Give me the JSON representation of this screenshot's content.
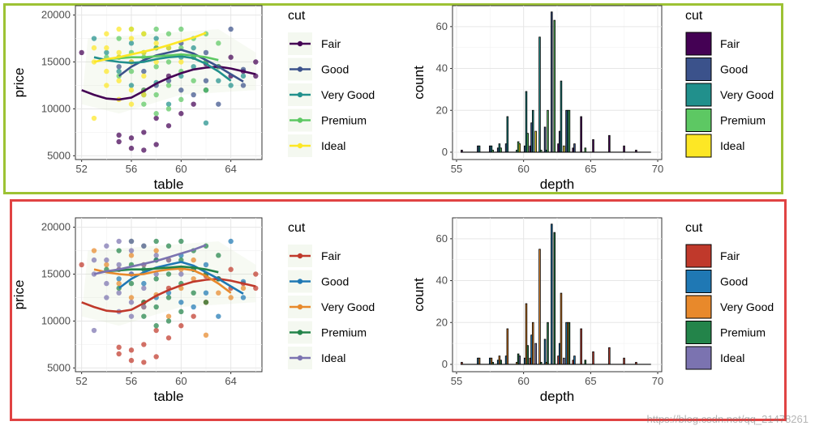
{
  "watermark": "https://blog.csdn.net/qq_21478261",
  "panels": [
    {
      "frame_color": "#9dc234",
      "palette_name": "viridis",
      "scatter": {
        "type": "scatter",
        "xlabel": "table",
        "ylabel": "price",
        "xticks": [
          52,
          56,
          60,
          64
        ],
        "yticks": [
          5000,
          10000,
          15000,
          20000
        ],
        "xlim": [
          51.5,
          66.5
        ],
        "ylim": [
          4600,
          21000
        ],
        "legend_title": "cut",
        "legend_placement": "right"
      },
      "histogram": {
        "type": "bar",
        "xlabel": "depth",
        "ylabel": "count",
        "xticks": [
          55,
          60,
          65,
          70
        ],
        "yticks": [
          0,
          20,
          40,
          60
        ],
        "xlim": [
          54.7,
          70.3
        ],
        "ylim": [
          -3.5,
          70
        ],
        "legend_title": "cut",
        "legend_placement": "right"
      },
      "colors": {
        "Fair": "#440154",
        "Good": "#3b528b",
        "Very Good": "#21908c",
        "Premium": "#5dc863",
        "Ideal": "#fde725"
      }
    },
    {
      "frame_color": "#e04343",
      "palette_name": "custom",
      "scatter": {
        "type": "scatter",
        "xlabel": "table",
        "ylabel": "price",
        "xticks": [
          52,
          56,
          60,
          64
        ],
        "yticks": [
          5000,
          10000,
          15000,
          20000
        ],
        "xlim": [
          51.5,
          66.5
        ],
        "ylim": [
          4600,
          21000
        ],
        "legend_title": "cut",
        "legend_placement": "right"
      },
      "histogram": {
        "type": "bar",
        "xlabel": "depth",
        "ylabel": "count",
        "xticks": [
          55,
          60,
          65,
          70
        ],
        "yticks": [
          0,
          20,
          40,
          60
        ],
        "xlim": [
          54.7,
          70.3
        ],
        "ylim": [
          -3.5,
          70
        ],
        "legend_title": "cut",
        "legend_placement": "right"
      },
      "colors": {
        "Fair": "#c0392b",
        "Good": "#1f78b4",
        "Very Good": "#e8892b",
        "Premium": "#23844a",
        "Ideal": "#7b73b0"
      }
    }
  ],
  "chart_data": [
    {
      "type": "scatter",
      "title": "",
      "xlabel": "table",
      "ylabel": "price",
      "xlim": [
        51.5,
        66.5
      ],
      "ylim": [
        4600,
        21000
      ],
      "grid": true,
      "legend": "right",
      "series": [
        {
          "name": "Fair",
          "points": [
            [
              55,
              6500
            ],
            [
              55,
              7200
            ],
            [
              56,
              5800
            ],
            [
              56,
              6900
            ],
            [
              57,
              5600
            ],
            [
              57,
              7500
            ],
            [
              58,
              6200
            ],
            [
              58,
              9000
            ],
            [
              59,
              8200
            ],
            [
              60,
              9500
            ],
            [
              61,
              10500
            ],
            [
              62,
              12000
            ],
            [
              62,
              14800
            ],
            [
              63,
              14500
            ],
            [
              64,
              15500
            ],
            [
              64,
              13500
            ],
            [
              65,
              14000
            ],
            [
              66,
              15000
            ],
            [
              66,
              13500
            ],
            [
              52,
              16000
            ],
            [
              57,
              12000
            ],
            [
              59,
              13500
            ]
          ],
          "trend": [
            [
              52,
              12000
            ],
            [
              53,
              11500
            ],
            [
              54,
              11100
            ],
            [
              55,
              11000
            ],
            [
              56,
              11200
            ],
            [
              57,
              11900
            ],
            [
              58,
              12700
            ],
            [
              59,
              13300
            ],
            [
              60,
              13800
            ],
            [
              61,
              14200
            ],
            [
              62,
              14400
            ],
            [
              63,
              14500
            ],
            [
              64,
              14300
            ],
            [
              65,
              14000
            ],
            [
              66,
              13700
            ]
          ]
        },
        {
          "name": "Good",
          "points": [
            [
              55,
              14500
            ],
            [
              56,
              15000
            ],
            [
              57,
              14000
            ],
            [
              58,
              16500
            ],
            [
              58,
              12500
            ],
            [
              59,
              13000
            ],
            [
              60,
              17000
            ],
            [
              60,
              12000
            ],
            [
              61,
              15500
            ],
            [
              61,
              11500
            ],
            [
              62,
              16000
            ],
            [
              62,
              13000
            ],
            [
              63,
              14500
            ],
            [
              63,
              10500
            ],
            [
              64,
              18500
            ],
            [
              65,
              12500
            ],
            [
              65,
              14200
            ]
          ],
          "trend": [
            [
              55,
              13500
            ],
            [
              56,
              14500
            ],
            [
              57,
              15200
            ],
            [
              58,
              15700
            ],
            [
              59,
              16000
            ],
            [
              60,
              16300
            ],
            [
              61,
              15900
            ],
            [
              62,
              15200
            ],
            [
              63,
              14500
            ],
            [
              64,
              13700
            ],
            [
              65,
              12900
            ]
          ]
        },
        {
          "name": "Very Good",
          "points": [
            [
              53,
              17500
            ],
            [
              54,
              16000
            ],
            [
              55,
              15500
            ],
            [
              55,
              14000
            ],
            [
              56,
              17000
            ],
            [
              56,
              12500
            ],
            [
              57,
              16000
            ],
            [
              57,
              11500
            ],
            [
              58,
              17500
            ],
            [
              58,
              12800
            ],
            [
              59,
              16500
            ],
            [
              59,
              10500
            ],
            [
              60,
              15500
            ],
            [
              60,
              13500
            ],
            [
              61,
              14500
            ],
            [
              61,
              16500
            ],
            [
              62,
              12000
            ],
            [
              62,
              15000
            ],
            [
              63,
              13000
            ],
            [
              64,
              12500
            ],
            [
              65,
              13500
            ],
            [
              62,
              8500
            ]
          ],
          "trend": [
            [
              53,
              15500
            ],
            [
              54,
              15200
            ],
            [
              55,
              15000
            ],
            [
              56,
              14900
            ],
            [
              57,
              15000
            ],
            [
              58,
              15300
            ],
            [
              59,
              15500
            ],
            [
              60,
              15600
            ],
            [
              61,
              15400
            ],
            [
              62,
              14800
            ],
            [
              63,
              14000
            ],
            [
              64,
              13000
            ]
          ]
        },
        {
          "name": "Premium",
          "points": [
            [
              56,
              18500
            ],
            [
              56,
              16000
            ],
            [
              56,
              14000
            ],
            [
              57,
              18000
            ],
            [
              57,
              15500
            ],
            [
              57,
              12000
            ],
            [
              57,
              10500
            ],
            [
              58,
              18500
            ],
            [
              58,
              16500
            ],
            [
              58,
              14500
            ],
            [
              58,
              11500
            ],
            [
              58,
              9500
            ],
            [
              59,
              18000
            ],
            [
              59,
              15000
            ],
            [
              59,
              12500
            ],
            [
              59,
              10000
            ],
            [
              60,
              18500
            ],
            [
              60,
              16500
            ],
            [
              60,
              14000
            ],
            [
              60,
              11000
            ],
            [
              61,
              17500
            ],
            [
              61,
              15500
            ],
            [
              61,
              13000
            ],
            [
              62,
              18000
            ],
            [
              62,
              15000
            ],
            [
              62,
              12000
            ],
            [
              63,
              17000
            ],
            [
              63,
              14500
            ],
            [
              55,
              17500
            ],
            [
              55,
              13500
            ],
            [
              54,
              15500
            ]
          ],
          "trend": [
            [
              54,
              15300
            ],
            [
              55,
              15400
            ],
            [
              56,
              15500
            ],
            [
              57,
              15500
            ],
            [
              58,
              15600
            ],
            [
              59,
              15700
            ],
            [
              60,
              15800
            ],
            [
              61,
              15700
            ],
            [
              62,
              15500
            ],
            [
              63,
              15200
            ]
          ]
        },
        {
          "name": "Ideal",
          "points": [
            [
              53,
              15000
            ],
            [
              53,
              9000
            ],
            [
              54,
              18000
            ],
            [
              54,
              16500
            ],
            [
              54,
              14000
            ],
            [
              55,
              18500
            ],
            [
              55,
              16000
            ],
            [
              55,
              15500
            ],
            [
              55,
              13000
            ],
            [
              56,
              18500
            ],
            [
              56,
              17500
            ],
            [
              56,
              15000
            ],
            [
              56,
              12000
            ],
            [
              56,
              10500
            ],
            [
              57,
              18000
            ],
            [
              57,
              16000
            ],
            [
              57,
              13500
            ],
            [
              57,
              11500
            ],
            [
              58,
              17000
            ],
            [
              58,
              15000
            ],
            [
              59,
              16500
            ],
            [
              60,
              15000
            ],
            [
              53,
              16500
            ],
            [
              54,
              12500
            ],
            [
              55,
              11000
            ]
          ],
          "trend": [
            [
              53,
              15000
            ],
            [
              54,
              15300
            ],
            [
              55,
              15500
            ],
            [
              56,
              15800
            ],
            [
              57,
              16100
            ],
            [
              58,
              16400
            ],
            [
              59,
              16800
            ],
            [
              60,
              17200
            ],
            [
              61,
              17600
            ],
            [
              62,
              18100
            ]
          ]
        }
      ]
    },
    {
      "type": "bar",
      "title": "",
      "xlabel": "depth",
      "ylabel": "count",
      "xlim": [
        54.7,
        70.3
      ],
      "ylim": [
        -3.5,
        70
      ],
      "grid": true,
      "legend": "right",
      "bar_groups": [
        {
          "x": 55.6,
          "counts": {
            "Fair": 1
          }
        },
        {
          "x": 56.7,
          "counts": {
            "Good": 3,
            "Very Good": 3
          }
        },
        {
          "x": 57.6,
          "counts": {
            "Good": 3,
            "Very Good": 3,
            "Premium": 1
          }
        },
        {
          "x": 58.2,
          "counts": {
            "Good": 2,
            "Very Good": 4,
            "Premium": 2
          }
        },
        {
          "x": 58.8,
          "counts": {
            "Good": 4,
            "Very Good": 17
          }
        },
        {
          "x": 59.5,
          "counts": {
            "Very Good": 1,
            "Premium": 5,
            "Ideal": 4
          }
        },
        {
          "x": 60.2,
          "counts": {
            "Good": 3,
            "Very Good": 29,
            "Premium": 9
          }
        },
        {
          "x": 60.7,
          "counts": {
            "Fair": 3,
            "Good": 14,
            "Very Good": 20,
            "Ideal": 10
          }
        },
        {
          "x": 61.2,
          "counts": {
            "Very Good": 55,
            "Premium": 1
          }
        },
        {
          "x": 61.7,
          "counts": {
            "Good": 12,
            "Very Good": 1,
            "Premium": 20
          }
        },
        {
          "x": 62.2,
          "counts": {
            "Good": 67,
            "Premium": 63
          }
        },
        {
          "x": 62.8,
          "counts": {
            "Fair": 4,
            "Good": 10,
            "Very Good": 34,
            "Ideal": 3
          }
        },
        {
          "x": 63.3,
          "counts": {
            "Good": 20,
            "Very Good": 20,
            "Premium": 20
          }
        },
        {
          "x": 63.9,
          "counts": {
            "Fair": 2,
            "Good": 4
          }
        },
        {
          "x": 64.5,
          "counts": {
            "Fair": 17,
            "Premium": 2
          }
        },
        {
          "x": 65.4,
          "counts": {
            "Fair": 6
          }
        },
        {
          "x": 66.6,
          "counts": {
            "Fair": 8
          }
        },
        {
          "x": 67.7,
          "counts": {
            "Fair": 3
          }
        },
        {
          "x": 68.6,
          "counts": {
            "Fair": 1
          }
        }
      ]
    }
  ],
  "categories": [
    "Fair",
    "Good",
    "Very Good",
    "Premium",
    "Ideal"
  ]
}
